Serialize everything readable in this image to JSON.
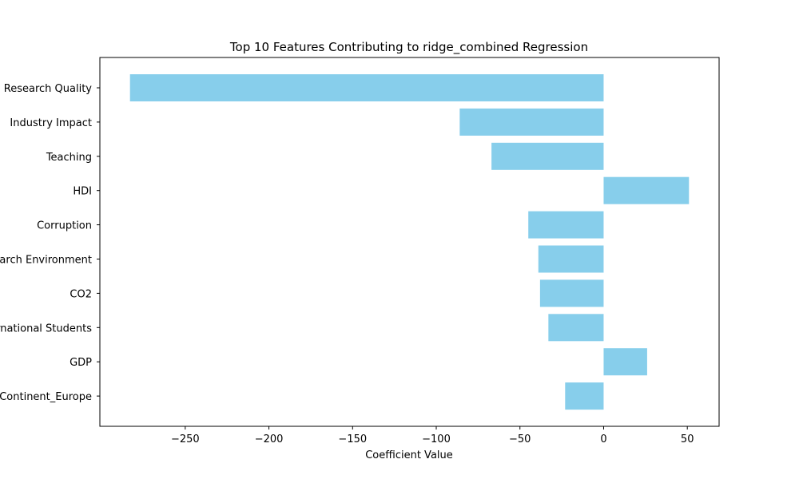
{
  "chart_data": {
    "type": "bar",
    "orientation": "horizontal",
    "title": "Top 10 Features Contributing to ridge_combined Regression",
    "xlabel": "Coefficient Value",
    "ylabel": "",
    "categories": [
      "Research Quality",
      "Industry Impact",
      "Teaching",
      "HDI",
      "Corruption",
      "Research Environment",
      "CO2",
      "International Students",
      "GDP",
      "Continent_Europe"
    ],
    "values": [
      -283,
      -86,
      -67,
      51,
      -45,
      -39,
      -38,
      -33,
      26,
      -23
    ],
    "xlim": [
      -301,
      69
    ],
    "xticks": [
      -250,
      -200,
      -150,
      -100,
      -50,
      0,
      50
    ],
    "xtick_labels": [
      "−250",
      "−200",
      "−150",
      "−100",
      "−50",
      "0",
      "50"
    ],
    "bar_color": "#87CEEB",
    "grid": false,
    "legend": "none"
  }
}
